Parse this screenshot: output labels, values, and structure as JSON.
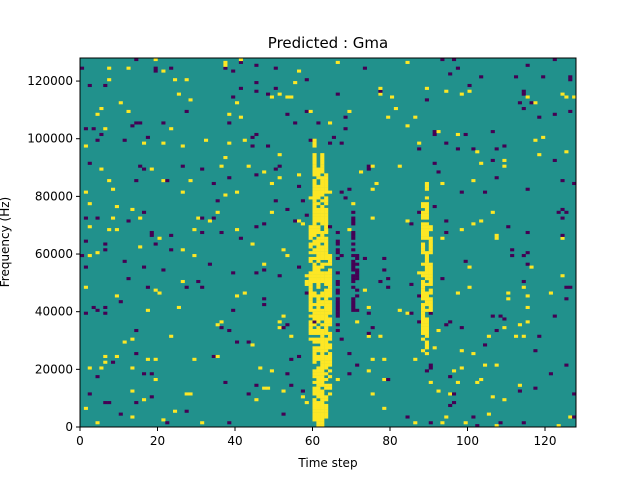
{
  "chart_data": {
    "type": "heatmap",
    "title": "Predicted : Gma",
    "xlabel": "Time step",
    "ylabel": "Frequency (Hz)",
    "xlim": [
      0,
      128
    ],
    "ylim": [
      0,
      128000
    ],
    "xticks": [
      0,
      20,
      40,
      60,
      80,
      100,
      120
    ],
    "yticks": [
      0,
      20000,
      40000,
      60000,
      80000,
      100000,
      120000
    ],
    "n_rows": 128,
    "colors": {
      "background": "#21918c",
      "low": "#440154",
      "high": "#fde725"
    },
    "bright_columns": [
      {
        "t": 60,
        "from": 2,
        "to": 100
      },
      {
        "t": 61,
        "from": 0,
        "to": 90
      },
      {
        "t": 62,
        "from": 0,
        "to": 95
      },
      {
        "t": 63,
        "from": 2,
        "to": 88
      },
      {
        "t": 64,
        "from": 10,
        "to": 60
      },
      {
        "t": 59,
        "from": 30,
        "to": 70
      },
      {
        "t": 88,
        "from": 30,
        "to": 78
      },
      {
        "t": 89,
        "from": 25,
        "to": 85
      },
      {
        "t": 90,
        "from": 40,
        "to": 70
      }
    ],
    "dark_columns": [
      {
        "t": 70,
        "from": 40,
        "to": 75
      },
      {
        "t": 71,
        "from": 45,
        "to": 60
      },
      {
        "t": 66,
        "from": 30,
        "to": 70
      }
    ],
    "scatter_seed": 7,
    "scatter_density": 0.035
  }
}
